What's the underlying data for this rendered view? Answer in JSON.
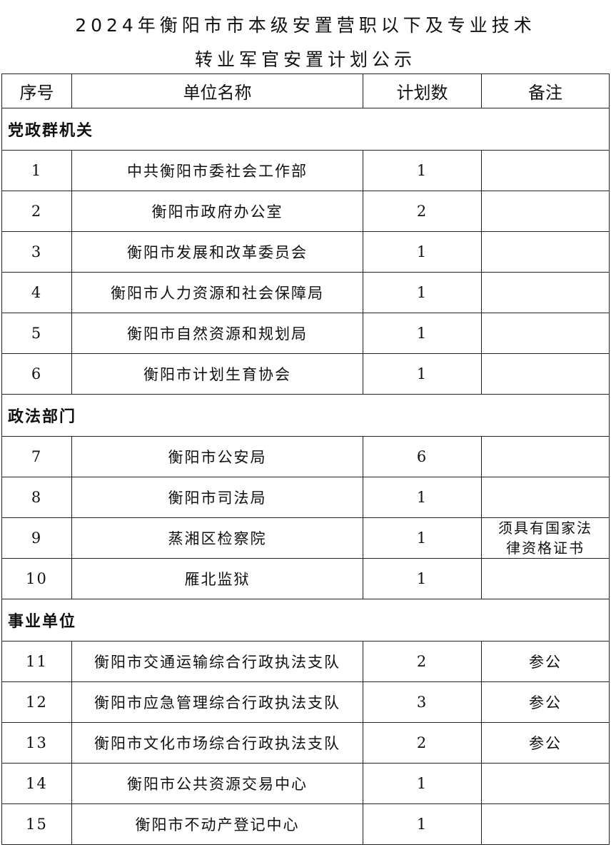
{
  "title": {
    "line1": "2024年衡阳市市本级安置营职以下及专业技术",
    "line2": "转业军官安置计划公示"
  },
  "table": {
    "headers": [
      "序号",
      "单位名称",
      "计划数",
      "备注"
    ],
    "sections": [
      {
        "name": "党政群机关",
        "rows": [
          {
            "no": "1",
            "unit": "中共衡阳市委社会工作部",
            "count": "1",
            "note": ""
          },
          {
            "no": "2",
            "unit": "衡阳市政府办公室",
            "count": "2",
            "note": ""
          },
          {
            "no": "3",
            "unit": "衡阳市发展和改革委员会",
            "count": "1",
            "note": ""
          },
          {
            "no": "4",
            "unit": "衡阳市人力资源和社会保障局",
            "count": "1",
            "note": ""
          },
          {
            "no": "5",
            "unit": "衡阳市自然资源和规划局",
            "count": "1",
            "note": ""
          },
          {
            "no": "6",
            "unit": "衡阳市计划生育协会",
            "count": "1",
            "note": ""
          }
        ]
      },
      {
        "name": "政法部门",
        "rows": [
          {
            "no": "7",
            "unit": "衡阳市公安局",
            "count": "6",
            "note": ""
          },
          {
            "no": "8",
            "unit": "衡阳市司法局",
            "count": "1",
            "note": ""
          },
          {
            "no": "9",
            "unit": "蒸湘区检察院",
            "count": "1",
            "note": "须具有国家法律资格证书"
          },
          {
            "no": "10",
            "unit": "雁北监狱",
            "count": "1",
            "note": ""
          }
        ]
      },
      {
        "name": "事业单位",
        "rows": [
          {
            "no": "11",
            "unit": "衡阳市交通运输综合行政执法支队",
            "count": "2",
            "note": "参公"
          },
          {
            "no": "12",
            "unit": "衡阳市应急管理综合行政执法支队",
            "count": "3",
            "note": "参公"
          },
          {
            "no": "13",
            "unit": "衡阳市文化市场综合行政执法支队",
            "count": "2",
            "note": "参公"
          },
          {
            "no": "14",
            "unit": "衡阳市公共资源交易中心",
            "count": "1",
            "note": ""
          },
          {
            "no": "15",
            "unit": "衡阳市不动产登记中心",
            "count": "1",
            "note": ""
          }
        ]
      }
    ]
  }
}
